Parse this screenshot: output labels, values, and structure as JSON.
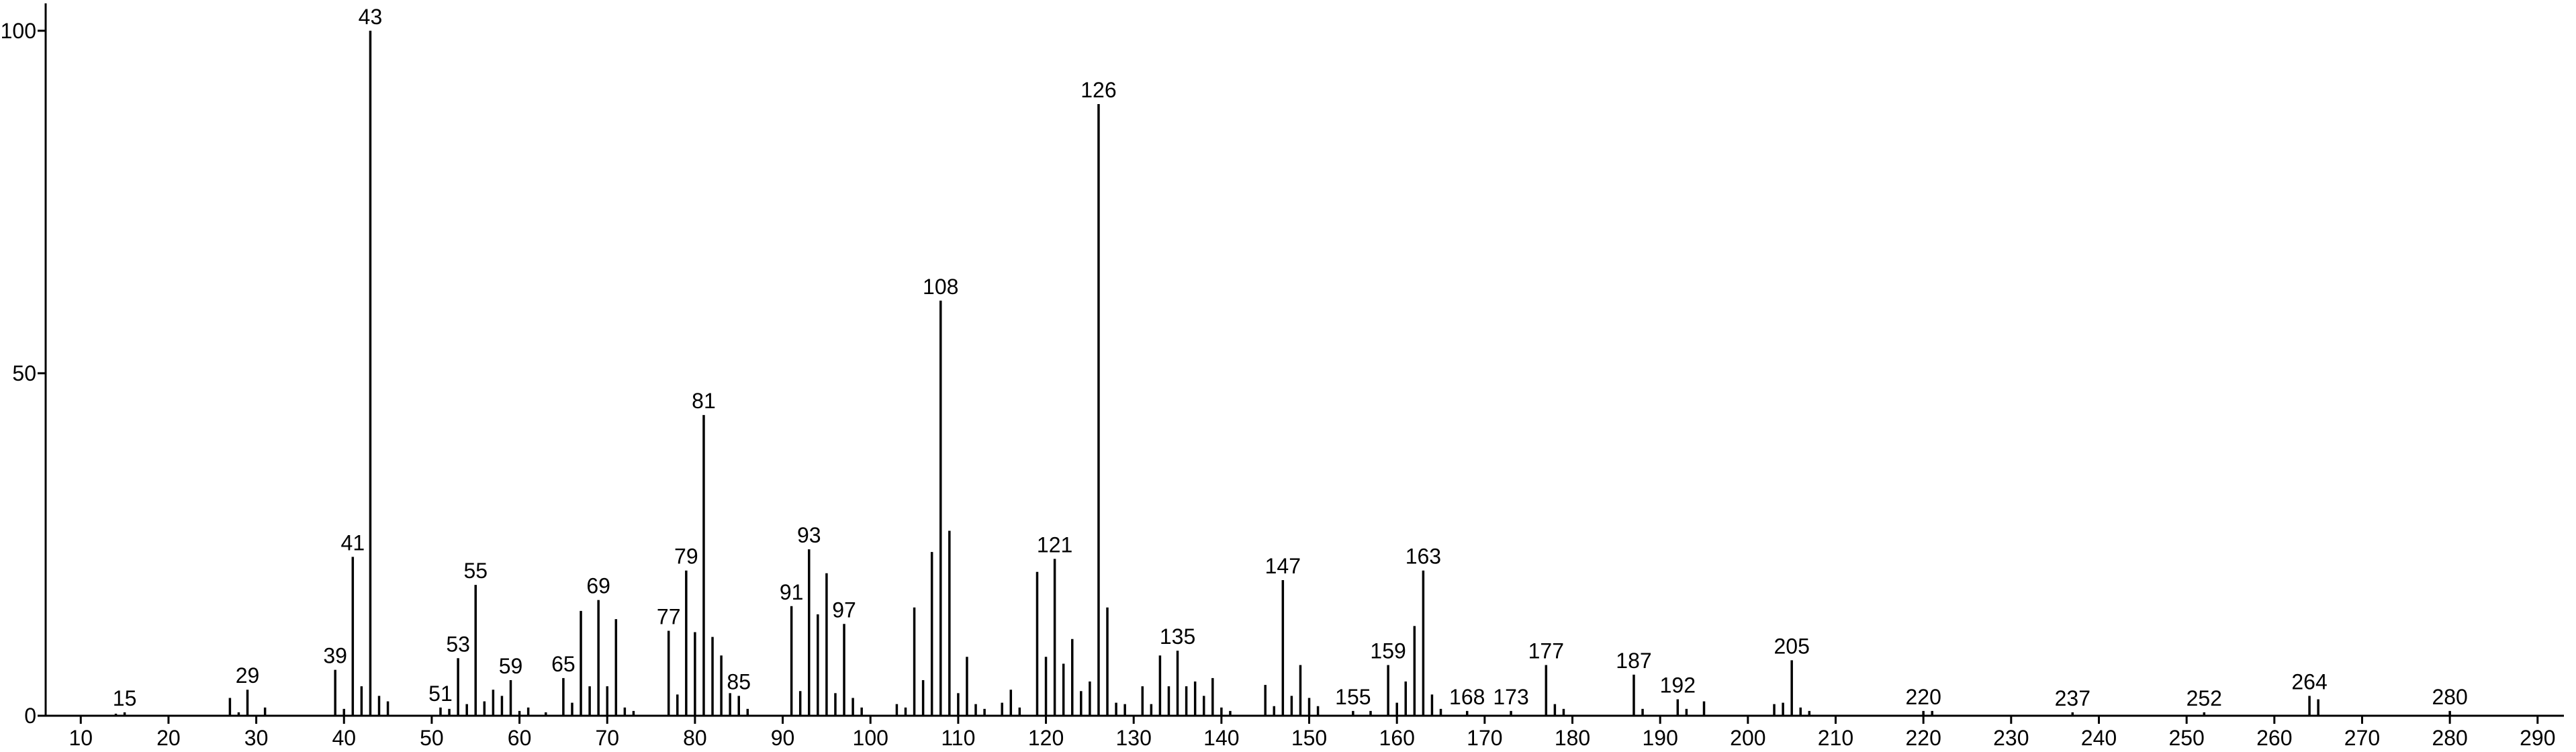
{
  "chart_data": {
    "type": "bar",
    "color": "#000000",
    "x": [
      14,
      15,
      27,
      28,
      29,
      31,
      39,
      40,
      41,
      42,
      43,
      44,
      45,
      51,
      52,
      53,
      54,
      55,
      56,
      57,
      58,
      59,
      60,
      61,
      63,
      65,
      66,
      67,
      68,
      69,
      70,
      71,
      72,
      73,
      77,
      78,
      79,
      80,
      81,
      82,
      83,
      84,
      85,
      86,
      91,
      92,
      93,
      94,
      95,
      96,
      97,
      98,
      99,
      103,
      104,
      105,
      106,
      107,
      108,
      109,
      110,
      111,
      112,
      113,
      115,
      116,
      117,
      119,
      120,
      121,
      122,
      123,
      124,
      125,
      126,
      127,
      128,
      129,
      131,
      132,
      133,
      134,
      135,
      136,
      137,
      138,
      139,
      140,
      141,
      145,
      146,
      147,
      148,
      149,
      150,
      151,
      155,
      157,
      159,
      160,
      161,
      162,
      163,
      164,
      165,
      168,
      173,
      177,
      178,
      179,
      187,
      188,
      192,
      193,
      195,
      203,
      204,
      205,
      206,
      207,
      220,
      221,
      237,
      252,
      264,
      265,
      280
    ],
    "values": [
      0.3,
      0.5,
      2.6,
      0.5,
      3.8,
      1.2,
      6.7,
      1,
      23.2,
      4.3,
      100,
      2.9,
      2.1,
      1.2,
      1,
      8.4,
      1.7,
      19.1,
      2.1,
      3.8,
      2.9,
      5.2,
      0.7,
      1.2,
      0.5,
      5.5,
      1.9,
      15.3,
      4.3,
      16.9,
      4.3,
      14.1,
      1.2,
      0.7,
      12.4,
      3.1,
      21.2,
      12.2,
      43.9,
      11.5,
      8.8,
      3.3,
      2.9,
      1,
      16,
      3.6,
      24.3,
      14.8,
      20.8,
      3.3,
      13.4,
      2.6,
      1.2,
      1.7,
      1.2,
      15.8,
      5.2,
      23.9,
      60.6,
      27,
      3.3,
      8.6,
      1.7,
      1,
      1.9,
      3.8,
      1.2,
      21,
      8.6,
      22.9,
      7.6,
      11.2,
      3.6,
      5,
      89.3,
      15.8,
      1.9,
      1.7,
      4.3,
      1.7,
      8.8,
      4.3,
      9.5,
      4.3,
      5,
      2.9,
      5.5,
      1.2,
      0.7,
      4.5,
      1.4,
      19.8,
      2.9,
      7.4,
      2.6,
      1.4,
      0.7,
      0.7,
      7.4,
      1.9,
      5,
      13.1,
      21.2,
      3.1,
      1,
      0.7,
      0.7,
      7.4,
      1.7,
      1,
      6,
      1,
      2.4,
      1,
      2.1,
      1.7,
      1.9,
      8.1,
      1.2,
      0.7,
      0.7,
      0.7,
      0.5,
      0.5,
      2.9,
      2.4,
      0.7
    ],
    "labeled_peaks": [
      15,
      29,
      39,
      41,
      43,
      51,
      53,
      55,
      59,
      65,
      69,
      77,
      79,
      81,
      85,
      91,
      93,
      97,
      108,
      121,
      126,
      135,
      147,
      155,
      159,
      163,
      168,
      173,
      177,
      187,
      192,
      205,
      220,
      237,
      252,
      264,
      280
    ],
    "xlim": [
      6,
      293
    ],
    "xticks": [
      10,
      20,
      30,
      40,
      50,
      60,
      70,
      80,
      90,
      100,
      110,
      120,
      130,
      140,
      150,
      160,
      170,
      180,
      190,
      200,
      210,
      220,
      230,
      240,
      250,
      260,
      270,
      280,
      290
    ],
    "ylim": [
      0,
      104
    ],
    "yticks": [
      0,
      50,
      100
    ]
  }
}
